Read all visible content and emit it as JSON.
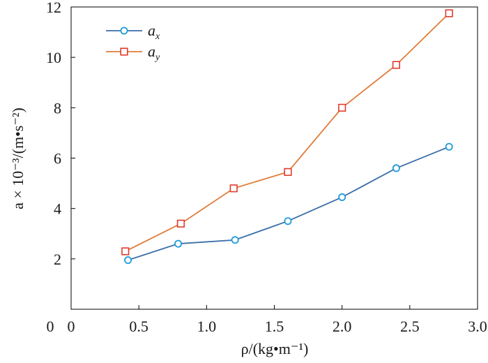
{
  "chart_data": {
    "type": "line",
    "title": "",
    "xlabel": "ρ/(kg•m⁻¹)",
    "ylabel": "a × 10⁻³/(m•s⁻²)",
    "xlim": [
      0,
      3.0
    ],
    "ylim": [
      0,
      12
    ],
    "x_ticks": [
      "0",
      "0.5",
      "1.0",
      "1.5",
      "2.0",
      "2.5",
      "3.0"
    ],
    "y_ticks": [
      "0",
      "2",
      "4",
      "6",
      "8",
      "10",
      "12"
    ],
    "grid": false,
    "legend_position": "top-left",
    "series": [
      {
        "name": "a_x",
        "label_main": "a",
        "label_sub": "x",
        "color": "#3a6da8",
        "marker_color": "#1e9bd7",
        "marker": "circle",
        "x": [
          0.42,
          0.79,
          1.21,
          1.6,
          2.0,
          2.4,
          2.79
        ],
        "values": [
          1.95,
          2.6,
          2.75,
          3.5,
          4.45,
          5.6,
          6.45
        ]
      },
      {
        "name": "a_y",
        "label_main": "a",
        "label_sub": "y",
        "color": "#e07b39",
        "marker_color": "#e03b2c",
        "marker": "square",
        "x": [
          0.4,
          0.81,
          1.2,
          1.6,
          2.0,
          2.4,
          2.79
        ],
        "values": [
          2.3,
          3.4,
          4.8,
          5.45,
          8.0,
          9.7,
          11.75
        ]
      }
    ]
  }
}
